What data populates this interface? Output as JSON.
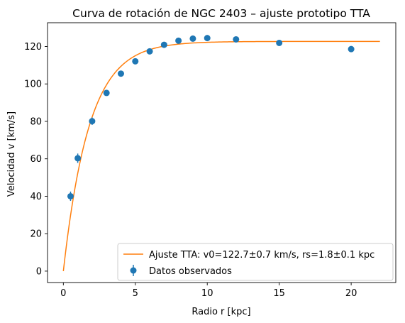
{
  "chart_data": {
    "type": "scatter",
    "title": "Curva de rotación de NGC 2403 – ajuste prototipo TTA",
    "xlabel": "Radio r [kpc]",
    "ylabel": "Velocidad v [km/s]",
    "xlim": [
      -1.1,
      23.1
    ],
    "ylim": [
      -6.1,
      132.7
    ],
    "xticks": [
      0,
      5,
      10,
      15,
      20
    ],
    "yticks": [
      0,
      20,
      40,
      60,
      80,
      100,
      120
    ],
    "grid": false,
    "legend_position": "lower-right",
    "series": [
      {
        "name": "Datos observados",
        "kind": "errorbar",
        "color": "#1f77b4",
        "x": [
          0.5,
          1,
          2,
          3,
          4,
          5,
          6,
          7,
          8,
          9,
          10,
          12,
          15,
          20
        ],
        "y": [
          40.0,
          60.3,
          80.1,
          95.2,
          105.5,
          112.1,
          117.4,
          120.9,
          123.1,
          124.2,
          124.5,
          123.8,
          121.9,
          118.6
        ],
        "yerr": [
          2.5,
          2.5,
          2.0,
          1.5,
          1.5,
          1.5,
          1.5,
          1.5,
          1.5,
          1.5,
          1.5,
          1.5,
          1.5,
          1.5
        ]
      },
      {
        "name": "Ajuste TTA: v0=122.7±0.7 km/s, rs=1.8±0.1 kpc",
        "kind": "line",
        "color": "#ff7f0e",
        "model": {
          "v0": 122.7,
          "rs": 1.8,
          "x_start": 0,
          "x_end": 22
        }
      }
    ]
  }
}
